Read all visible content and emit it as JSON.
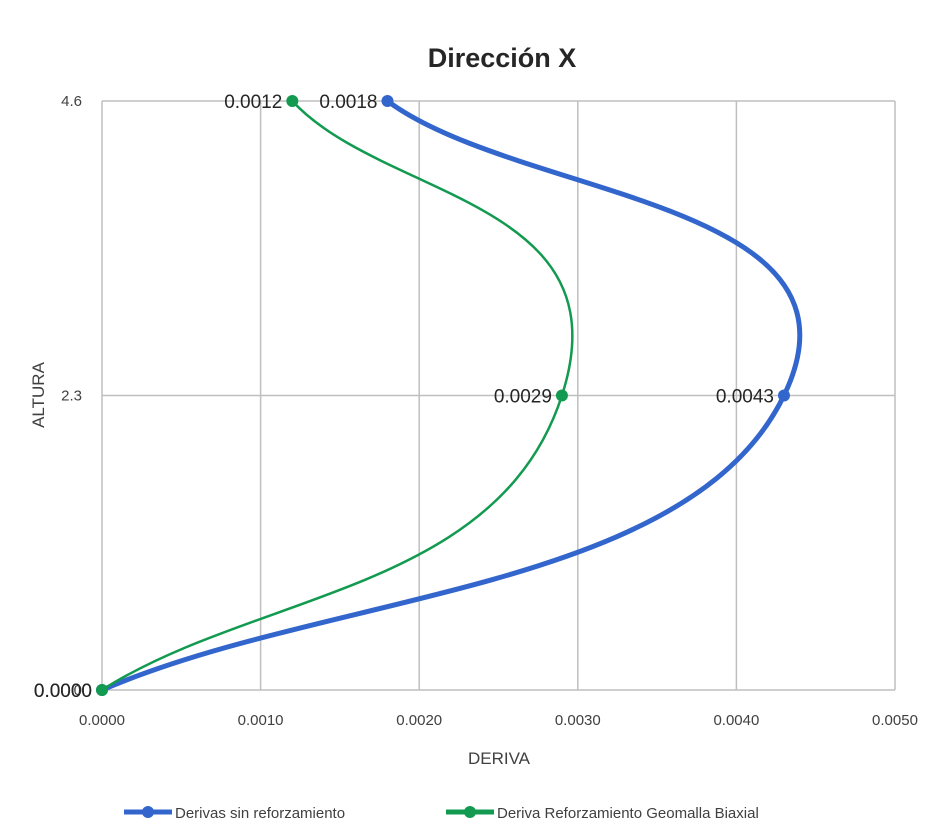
{
  "chart_data": {
    "type": "line",
    "title": "Dirección X",
    "xlabel": "DERIVA",
    "ylabel": "ALTURA",
    "xlim": [
      0,
      0.005
    ],
    "xticks": [
      0,
      0.001,
      0.002,
      0.003,
      0.004,
      0.005
    ],
    "xtick_labels": [
      "0.0000",
      "0.0010",
      "0.0020",
      "0.0030",
      "0.0040",
      "0.0050"
    ],
    "ylim": [
      0,
      4.6
    ],
    "yticks": [
      0,
      2.3,
      4.6
    ],
    "ytick_labels": [
      "0",
      "2.3",
      "4.6"
    ],
    "grid": true,
    "legend_position": "bottom",
    "series": [
      {
        "name": "Derivas sin reforzamiento",
        "color": "#3366CC",
        "x": [
          0,
          0.0043,
          0.0018
        ],
        "y": [
          0,
          2.3,
          4.6
        ],
        "labels": [
          "0.0000",
          "0.0043",
          "0.0018"
        ]
      },
      {
        "name": "Deriva Reforzamiento Geomalla Biaxial",
        "color": "#129A50",
        "x": [
          0,
          0.0029,
          0.0012
        ],
        "y": [
          0,
          2.3,
          4.6
        ],
        "labels": [
          "0.0000",
          "0.0029",
          "0.0012"
        ]
      }
    ]
  }
}
